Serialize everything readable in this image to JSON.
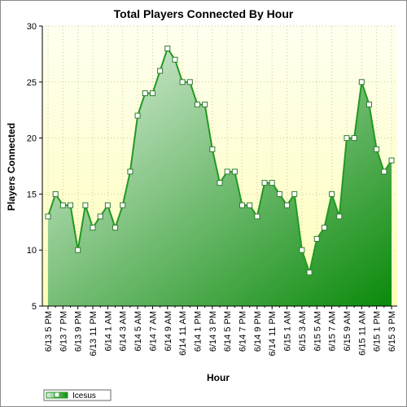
{
  "chart_data": {
    "type": "area",
    "title": "Total Players Connected By Hour",
    "xlabel": "Hour",
    "ylabel": "Players Connected",
    "ylim": [
      5,
      30
    ],
    "yticks": [
      5,
      10,
      15,
      20,
      25,
      30
    ],
    "grid": true,
    "legend_position": "bottom-left",
    "colors": {
      "line": "#229922",
      "fill_start": "#e4f2e4",
      "fill_end": "#0a8a0a",
      "plot_bg_top": "#fffff0",
      "plot_bg_bottom": "#fdfdb8"
    },
    "x": [
      "6/13 5 PM",
      "",
      "6/13 7 PM",
      "",
      "6/13 9 PM",
      "",
      "6/13 11 PM",
      "",
      "6/14 1 AM",
      "",
      "6/14 3 AM",
      "",
      "6/14 5 AM",
      "",
      "6/14 7 AM",
      "",
      "6/14 9 AM",
      "",
      "6/14 11 AM",
      "",
      "6/14 1 PM",
      "",
      "6/14 3 PM",
      "",
      "6/14 5 PM",
      "",
      "6/14 7 PM",
      "",
      "6/14 9 PM",
      "",
      "6/14 11 PM",
      "",
      "6/15 1 AM",
      "",
      "6/15 3 AM",
      "",
      "6/15 5 AM",
      "",
      "6/15 7 AM",
      "",
      "6/15 9 AM",
      "",
      "6/15 11 AM",
      "",
      "6/15 1 PM",
      "",
      "6/15 3 PM"
    ],
    "series": [
      {
        "name": "Icesus",
        "values": [
          13,
          15,
          14,
          14,
          10,
          14,
          12,
          13,
          14,
          12,
          14,
          17,
          22,
          24,
          24,
          26,
          28,
          27,
          25,
          25,
          23,
          23,
          19,
          16,
          17,
          17,
          14,
          14,
          13,
          16,
          16,
          15,
          14,
          15,
          10,
          8,
          11,
          12,
          15,
          13,
          20,
          20,
          25,
          23,
          19,
          17,
          18
        ]
      }
    ]
  }
}
